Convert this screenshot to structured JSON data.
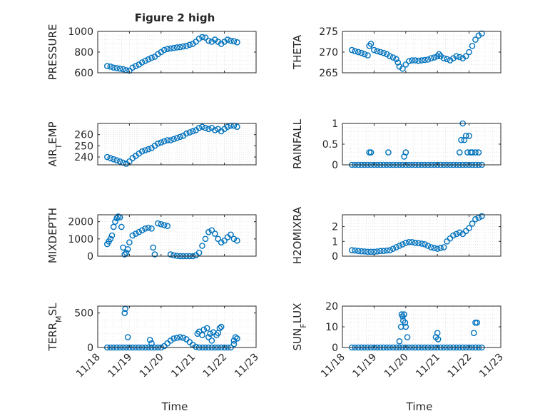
{
  "figure": {
    "title": "Figure 2 high"
  },
  "colors": {
    "marker": "#0072bd",
    "axis": "#262626",
    "grid": "#d9d9d9"
  },
  "chart_data": [
    {
      "type": "scatter",
      "title": "Figure 2 high",
      "ylabel": "PRESSURE",
      "xlim": [
        "11/18",
        "11/23"
      ],
      "ylim": [
        600,
        1000
      ],
      "yticks": [
        600,
        800,
        1000
      ],
      "yticklabels": [
        "600",
        "800",
        "1000"
      ],
      "grid": true,
      "x": [
        18.3,
        18.4,
        18.5,
        18.6,
        18.7,
        18.8,
        18.9,
        19.0,
        19.1,
        19.2,
        19.3,
        19.4,
        19.5,
        19.6,
        19.7,
        19.8,
        19.9,
        20.0,
        20.1,
        20.2,
        20.3,
        20.4,
        20.5,
        20.6,
        20.7,
        20.8,
        20.9,
        21.0,
        21.1,
        21.2,
        21.3,
        21.4,
        21.5,
        21.6,
        21.7,
        21.8,
        21.9,
        22.0,
        22.1,
        22.2,
        22.3,
        22.4
      ],
      "y": [
        665,
        660,
        650,
        645,
        640,
        635,
        625,
        620,
        650,
        665,
        680,
        700,
        715,
        730,
        745,
        755,
        780,
        800,
        820,
        830,
        835,
        840,
        845,
        848,
        855,
        860,
        870,
        880,
        900,
        930,
        945,
        940,
        910,
        900,
        920,
        900,
        880,
        900,
        920,
        910,
        905,
        895
      ]
    },
    {
      "type": "scatter",
      "ylabel": "THETA",
      "xlim": [
        "11/18",
        "11/23"
      ],
      "ylim": [
        265,
        275
      ],
      "yticks": [
        265,
        270,
        275
      ],
      "yticklabels": [
        "265",
        "270",
        "275"
      ],
      "grid": true,
      "x": [
        18.3,
        18.4,
        18.5,
        18.6,
        18.7,
        18.8,
        18.85,
        18.9,
        19.0,
        19.1,
        19.2,
        19.3,
        19.4,
        19.5,
        19.6,
        19.7,
        19.75,
        19.8,
        19.9,
        20.0,
        20.1,
        20.2,
        20.3,
        20.4,
        20.5,
        20.6,
        20.7,
        20.8,
        20.9,
        21.0,
        21.05,
        21.1,
        21.2,
        21.3,
        21.4,
        21.5,
        21.6,
        21.7,
        21.8,
        21.9,
        22.0,
        22.1,
        22.2,
        22.3,
        22.4
      ],
      "y": [
        270.5,
        270.2,
        270.0,
        269.8,
        269.5,
        269.2,
        271.5,
        272.0,
        270.5,
        270.2,
        270.0,
        269.8,
        269.5,
        269.0,
        268.7,
        268.3,
        267.5,
        266.5,
        266.0,
        267.0,
        267.8,
        268.0,
        268.0,
        267.9,
        268.0,
        268.1,
        268.2,
        268.5,
        268.7,
        269.0,
        269.5,
        269.0,
        268.5,
        268.3,
        268.0,
        268.5,
        269.0,
        268.8,
        268.5,
        269.0,
        270.0,
        271.5,
        273.0,
        274.0,
        274.5
      ]
    },
    {
      "type": "scatter",
      "ylabel": "AIR_TEMP",
      "xlim": [
        "11/18",
        "11/23"
      ],
      "ylim": [
        233,
        270
      ],
      "yticks": [
        240,
        250,
        260
      ],
      "yticklabels": [
        "240",
        "250",
        "260"
      ],
      "grid": true,
      "x": [
        18.3,
        18.4,
        18.5,
        18.6,
        18.7,
        18.8,
        18.9,
        19.0,
        19.1,
        19.2,
        19.3,
        19.4,
        19.5,
        19.6,
        19.7,
        19.8,
        19.9,
        20.0,
        20.1,
        20.2,
        20.3,
        20.4,
        20.5,
        20.6,
        20.7,
        20.8,
        20.9,
        21.0,
        21.1,
        21.2,
        21.3,
        21.4,
        21.5,
        21.6,
        21.7,
        21.8,
        21.9,
        22.0,
        22.1,
        22.2,
        22.3,
        22.4
      ],
      "y": [
        240,
        239,
        238,
        237,
        236,
        235,
        234,
        236,
        239,
        241,
        243,
        245,
        246,
        247,
        248,
        250,
        252,
        253,
        254,
        255,
        255,
        256,
        257,
        258,
        259,
        261,
        262,
        263,
        264,
        266,
        267,
        266,
        265,
        266,
        264,
        265,
        263,
        265,
        267,
        268,
        268,
        267
      ]
    },
    {
      "type": "scatter",
      "ylabel": "RAINFALL",
      "xlim": [
        "11/18",
        "11/23"
      ],
      "ylim": [
        0,
        1
      ],
      "yticks": [
        0,
        0.5,
        1
      ],
      "yticklabels": [
        "0",
        "0.5",
        "1"
      ],
      "grid": true,
      "x": [
        18.3,
        18.4,
        18.5,
        18.6,
        18.7,
        18.8,
        18.9,
        19.0,
        19.1,
        19.2,
        19.3,
        19.4,
        19.5,
        19.6,
        19.7,
        19.8,
        19.9,
        20.0,
        20.1,
        20.2,
        20.3,
        20.4,
        20.5,
        20.6,
        20.7,
        20.8,
        20.9,
        21.0,
        21.1,
        21.2,
        21.3,
        21.4,
        21.5,
        21.6,
        21.7,
        21.8,
        21.9,
        22.0,
        22.1,
        22.2,
        22.3,
        22.4,
        18.85,
        18.9,
        19.45,
        19.95,
        20.0,
        21.7,
        21.75,
        21.8,
        21.85,
        21.9,
        21.95,
        22.0,
        22.05,
        22.1,
        22.2,
        22.3
      ],
      "y": [
        0,
        0,
        0,
        0,
        0,
        0,
        0,
        0,
        0,
        0,
        0,
        0,
        0,
        0,
        0,
        0,
        0,
        0,
        0,
        0,
        0,
        0,
        0,
        0,
        0,
        0,
        0,
        0,
        0,
        0,
        0,
        0,
        0,
        0,
        0,
        0,
        0,
        0,
        0,
        0,
        0,
        0,
        0.3,
        0.3,
        0.3,
        0.2,
        0.3,
        0.3,
        0.6,
        1.0,
        0.6,
        0.7,
        0.3,
        0.7,
        0.3,
        0.3,
        0.3,
        0.3
      ]
    },
    {
      "type": "scatter",
      "ylabel": "MIXDEPTH",
      "xlim": [
        "11/18",
        "11/23"
      ],
      "ylim": [
        0,
        2400
      ],
      "yticks": [
        0,
        1000,
        2000
      ],
      "yticklabels": [
        "0",
        "1000",
        "2000"
      ],
      "grid": true,
      "x": [
        18.3,
        18.35,
        18.4,
        18.45,
        18.5,
        18.55,
        18.6,
        18.65,
        18.7,
        18.75,
        18.8,
        18.85,
        18.9,
        18.95,
        19.0,
        19.1,
        19.2,
        19.3,
        19.4,
        19.5,
        19.6,
        19.7,
        19.75,
        19.8,
        19.9,
        20.0,
        20.1,
        20.2,
        20.3,
        20.4,
        20.5,
        20.6,
        20.7,
        20.8,
        20.9,
        21.0,
        21.1,
        21.2,
        21.3,
        21.4,
        21.5,
        21.6,
        21.7,
        21.8,
        21.9,
        22.0,
        22.1,
        22.2,
        22.3,
        22.4
      ],
      "y": [
        700,
        850,
        1000,
        1200,
        1700,
        2000,
        2200,
        2300,
        2250,
        1700,
        500,
        100,
        200,
        400,
        800,
        1200,
        1300,
        1400,
        1500,
        1600,
        1650,
        1600,
        500,
        100,
        1900,
        1850,
        1800,
        1750,
        100,
        50,
        20,
        0,
        0,
        0,
        0,
        0,
        50,
        200,
        600,
        1000,
        1400,
        1500,
        1300,
        1000,
        800,
        900,
        1100,
        1250,
        1000,
        900
      ]
    },
    {
      "type": "scatter",
      "ylabel": "H2OMIXRA",
      "xlim": [
        "11/18",
        "11/23"
      ],
      "ylim": [
        0,
        2.8
      ],
      "yticks": [
        0,
        1,
        2
      ],
      "yticklabels": [
        "0",
        "1",
        "2"
      ],
      "grid": true,
      "x": [
        18.3,
        18.4,
        18.5,
        18.6,
        18.7,
        18.8,
        18.9,
        19.0,
        19.1,
        19.2,
        19.3,
        19.4,
        19.5,
        19.6,
        19.7,
        19.8,
        19.9,
        20.0,
        20.1,
        20.2,
        20.3,
        20.4,
        20.5,
        20.6,
        20.7,
        20.8,
        20.9,
        21.0,
        21.1,
        21.2,
        21.3,
        21.4,
        21.5,
        21.6,
        21.7,
        21.8,
        21.9,
        22.0,
        22.1,
        22.2,
        22.3,
        22.4
      ],
      "y": [
        0.4,
        0.38,
        0.35,
        0.33,
        0.32,
        0.3,
        0.3,
        0.3,
        0.32,
        0.35,
        0.35,
        0.38,
        0.4,
        0.5,
        0.6,
        0.7,
        0.8,
        0.9,
        0.95,
        0.95,
        0.9,
        0.88,
        0.85,
        0.8,
        0.7,
        0.6,
        0.55,
        0.5,
        0.55,
        0.6,
        1.0,
        1.2,
        1.4,
        1.5,
        1.6,
        1.5,
        1.7,
        1.9,
        2.2,
        2.5,
        2.6,
        2.7
      ]
    },
    {
      "type": "scatter",
      "ylabel": "TERR_MSL",
      "xlim": [
        "11/18",
        "11/23"
      ],
      "xticklabels": [
        "11/18",
        "11/19",
        "11/20",
        "11/21",
        "11/22",
        "11/23"
      ],
      "xlabel": "Time",
      "ylim": [
        0,
        600
      ],
      "yticks": [
        0,
        500
      ],
      "yticklabels": [
        "0",
        "500"
      ],
      "grid": true,
      "x": [
        18.3,
        18.4,
        18.5,
        18.6,
        18.7,
        18.8,
        18.9,
        19.0,
        19.1,
        19.2,
        19.3,
        19.4,
        19.5,
        19.6,
        19.7,
        19.8,
        19.9,
        20.0,
        20.1,
        20.2,
        20.3,
        20.4,
        20.5,
        20.6,
        20.7,
        20.8,
        20.9,
        21.0,
        21.1,
        21.2,
        21.3,
        21.4,
        21.5,
        21.6,
        21.7,
        21.8,
        21.9,
        22.0,
        22.1,
        22.2,
        22.3,
        22.4,
        18.85,
        18.87,
        18.95,
        19.65,
        19.7,
        21.15,
        21.2,
        21.3,
        21.35,
        21.45,
        21.5,
        21.55,
        21.6,
        21.65,
        21.75,
        21.8,
        21.85,
        21.9,
        22.3,
        22.35
      ],
      "y": [
        0,
        0,
        0,
        0,
        0,
        0,
        0,
        0,
        0,
        0,
        0,
        0,
        0,
        0,
        0,
        0,
        0,
        0,
        20,
        60,
        100,
        130,
        140,
        150,
        140,
        120,
        80,
        40,
        10,
        0,
        0,
        0,
        0,
        0,
        0,
        0,
        0,
        0,
        0,
        0,
        50,
        130,
        500,
        560,
        150,
        110,
        60,
        200,
        230,
        180,
        260,
        280,
        150,
        200,
        100,
        220,
        180,
        210,
        280,
        300,
        100,
        150
      ]
    },
    {
      "type": "scatter",
      "ylabel": "SUN_FLUX",
      "xlim": [
        "11/18",
        "11/23"
      ],
      "xticklabels": [
        "11/18",
        "11/19",
        "11/20",
        "11/21",
        "11/22",
        "11/23"
      ],
      "xlabel": "Time",
      "ylim": [
        0,
        20
      ],
      "yticks": [
        0,
        10,
        20
      ],
      "yticklabels": [
        "0",
        "10",
        "20"
      ],
      "grid": true,
      "x": [
        18.3,
        18.4,
        18.5,
        18.6,
        18.7,
        18.8,
        18.9,
        19.0,
        19.1,
        19.2,
        19.3,
        19.4,
        19.5,
        19.6,
        19.7,
        19.8,
        19.9,
        20.0,
        20.1,
        20.2,
        20.3,
        20.4,
        20.5,
        20.6,
        20.7,
        20.8,
        20.9,
        21.0,
        21.1,
        21.2,
        21.3,
        21.4,
        21.5,
        21.6,
        21.7,
        21.8,
        21.9,
        22.0,
        22.1,
        22.2,
        22.3,
        22.4,
        19.8,
        19.85,
        19.87,
        19.9,
        19.92,
        19.95,
        19.98,
        20.0,
        20.05,
        20.95,
        21.0,
        21.02,
        22.15,
        22.2,
        22.25
      ],
      "y": [
        0,
        0,
        0,
        0,
        0,
        0,
        0,
        0,
        0,
        0,
        0,
        0,
        0,
        0,
        0,
        0,
        0,
        0,
        0,
        0,
        0,
        0,
        0,
        0,
        0,
        0,
        0,
        0,
        0,
        0,
        0,
        0,
        0,
        0,
        0,
        0,
        0,
        0,
        0,
        0,
        0,
        0,
        3,
        10,
        16,
        15,
        13,
        16,
        12,
        10,
        5,
        5,
        7,
        4,
        7,
        12,
        12
      ]
    }
  ]
}
